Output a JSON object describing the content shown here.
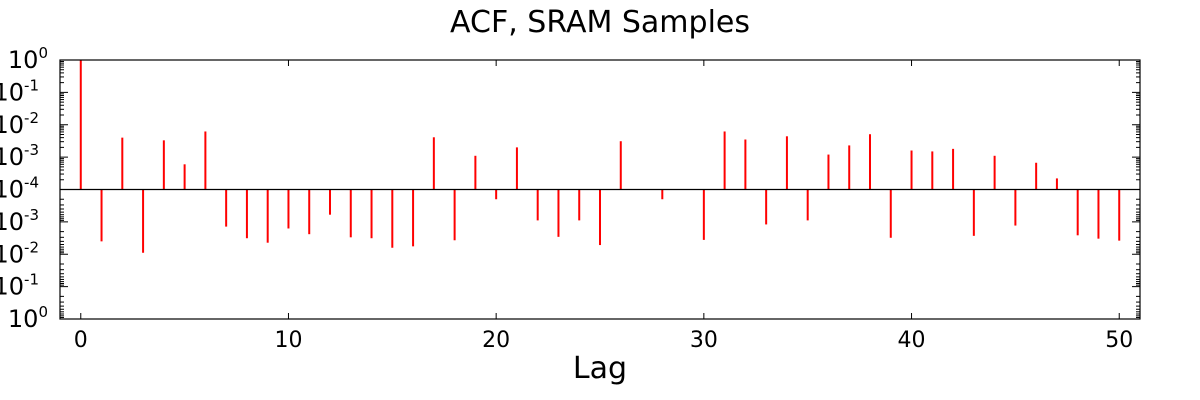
{
  "chart_data": {
    "type": "bar",
    "title": "ACF, SRAM Samples",
    "xlabel": "Lag",
    "ylabel": "",
    "xlim": [
      -1,
      51
    ],
    "xticks": [
      0,
      10,
      20,
      30,
      40,
      50
    ],
    "y_scale": "symmetric-log",
    "ylim_abs": [
      0.0001,
      1
    ],
    "yticks_top": [
      {
        "base": "10",
        "exp": "0"
      },
      {
        "base": "10",
        "exp": "-1"
      },
      {
        "base": "10",
        "exp": "-2"
      },
      {
        "base": "10",
        "exp": "-3"
      },
      {
        "base": "10",
        "exp": "-4"
      }
    ],
    "yticks_bottom": [
      {
        "base": "10",
        "exp": "-3"
      },
      {
        "base": "10",
        "exp": "-2"
      },
      {
        "base": "10",
        "exp": "-1"
      },
      {
        "base": "10",
        "exp": "0"
      }
    ],
    "bar_color": "#ff0000",
    "grid": false,
    "series": [
      {
        "lags": [
          0,
          1,
          2,
          3,
          4,
          5,
          6,
          7,
          8,
          9,
          10,
          11,
          12,
          13,
          14,
          15,
          16,
          17,
          18,
          19,
          20,
          21,
          22,
          23,
          24,
          25,
          26,
          27,
          28,
          29,
          30,
          31,
          32,
          33,
          34,
          35,
          36,
          37,
          38,
          39,
          40,
          41,
          42,
          43,
          44,
          45,
          46,
          47,
          48,
          49,
          50
        ],
        "values": [
          1.0,
          -0.004,
          0.004,
          -0.009,
          0.0033,
          0.0006,
          0.0062,
          -0.0014,
          -0.0032,
          -0.0044,
          -0.0016,
          -0.0024,
          -0.0006,
          -0.003,
          -0.0032,
          -0.0063,
          -0.0057,
          0.0041,
          -0.0037,
          0.0011,
          -0.0002,
          0.002,
          -0.0009,
          -0.0029,
          -0.0009,
          -0.0052,
          0.0031,
          0.0,
          -0.0002,
          0.0,
          -0.0036,
          0.0062,
          0.0035,
          -0.0012,
          0.0044,
          -0.0009,
          0.0012,
          0.0023,
          0.0051,
          -0.0031,
          0.0016,
          0.0015,
          0.0018,
          -0.0027,
          0.0011,
          -0.0013,
          0.00067,
          0.00022,
          -0.0026,
          -0.0033,
          -0.0038
        ]
      }
    ]
  }
}
